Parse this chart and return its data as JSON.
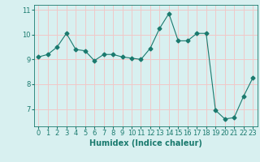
{
  "x": [
    0,
    1,
    2,
    3,
    4,
    5,
    6,
    7,
    8,
    9,
    10,
    11,
    12,
    13,
    14,
    15,
    16,
    17,
    18,
    19,
    20,
    21,
    22,
    23
  ],
  "y": [
    9.1,
    9.2,
    9.5,
    10.05,
    9.4,
    9.35,
    8.95,
    9.2,
    9.2,
    9.1,
    9.05,
    9.0,
    9.45,
    10.25,
    10.85,
    9.75,
    9.75,
    10.05,
    10.05,
    6.95,
    6.6,
    6.65,
    7.5,
    8.25
  ],
  "line_color": "#1a7a6e",
  "marker": "D",
  "marker_size": 2.5,
  "bg_color": "#d8f0f0",
  "grid_color": "#f0c8c8",
  "xlabel": "Humidex (Indice chaleur)",
  "xlim": [
    -0.5,
    23.5
  ],
  "ylim": [
    6.3,
    11.2
  ],
  "yticks": [
    7,
    8,
    9,
    10,
    11
  ],
  "xticks": [
    0,
    1,
    2,
    3,
    4,
    5,
    6,
    7,
    8,
    9,
    10,
    11,
    12,
    13,
    14,
    15,
    16,
    17,
    18,
    19,
    20,
    21,
    22,
    23
  ],
  "tick_color": "#1a7a6e",
  "label_color": "#1a7a6e",
  "xlabel_fontsize": 7,
  "tick_fontsize": 6,
  "linewidth": 0.8
}
